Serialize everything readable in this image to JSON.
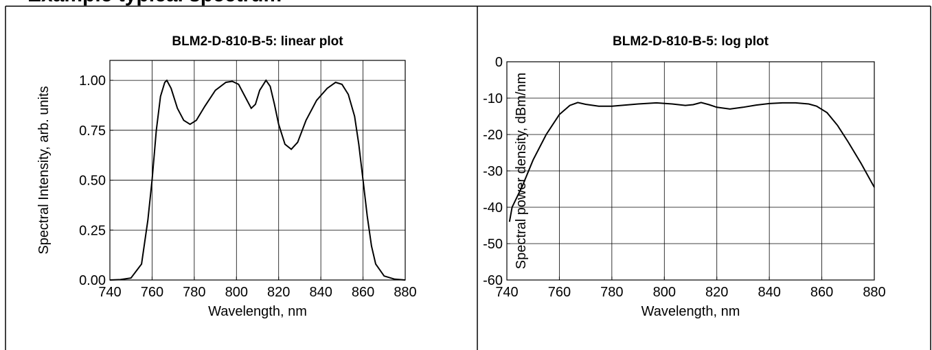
{
  "header": {
    "title": "Example typical spectrum"
  },
  "chart_data": [
    {
      "type": "line",
      "title": "BLM2-D-810-B-5: linear plot",
      "x_label": "Wavelength, nm",
      "y_label": "Spectral Intensity, arb. units",
      "xlim": [
        740,
        880
      ],
      "xticks": [
        740,
        760,
        780,
        800,
        820,
        840,
        860,
        880
      ],
      "ylim": [
        0,
        1.1
      ],
      "yticks": [
        {
          "value": 0,
          "label": "0.00"
        },
        {
          "value": 0.25,
          "label": "0.25"
        },
        {
          "value": 0.5,
          "label": "0.50"
        },
        {
          "value": 0.75,
          "label": "0.75"
        },
        {
          "value": 1,
          "label": "1.00"
        }
      ],
      "grid": true,
      "series": [
        {
          "color": "#000000",
          "x": [
            740,
            745,
            750,
            755,
            758,
            760,
            762,
            764,
            766,
            767,
            769,
            772,
            775,
            778,
            781,
            785,
            790,
            795,
            798,
            801,
            804,
            807,
            809,
            811,
            814,
            816,
            818,
            820,
            823,
            826,
            829,
            833,
            838,
            843,
            847,
            850,
            853,
            856,
            858,
            860,
            862,
            864,
            866,
            870,
            875,
            880
          ],
          "values": [
            0,
            0.002,
            0.01,
            0.08,
            0.3,
            0.5,
            0.75,
            0.92,
            0.99,
            1.0,
            0.96,
            0.86,
            0.8,
            0.78,
            0.8,
            0.87,
            0.95,
            0.99,
            0.995,
            0.98,
            0.92,
            0.86,
            0.88,
            0.95,
            1.0,
            0.97,
            0.88,
            0.78,
            0.68,
            0.655,
            0.69,
            0.8,
            0.9,
            0.96,
            0.99,
            0.98,
            0.93,
            0.82,
            0.68,
            0.5,
            0.32,
            0.17,
            0.08,
            0.02,
            0.004,
            0
          ]
        }
      ]
    },
    {
      "type": "line",
      "title": "BLM2-D-810-B-5: log plot",
      "x_label": "Wavelength, nm",
      "y_label": "Spectral power density, dBm/nm",
      "xlim": [
        740,
        880
      ],
      "xticks": [
        740,
        760,
        780,
        800,
        820,
        840,
        860,
        880
      ],
      "ylim": [
        -60,
        0
      ],
      "yticks": [
        -60,
        -50,
        -40,
        -30,
        -20,
        -10,
        0
      ],
      "grid": true,
      "series": [
        {
          "color": "#000000",
          "x": [
            741,
            742,
            744,
            746,
            750,
            755,
            760,
            764,
            767,
            770,
            775,
            780,
            785,
            790,
            797,
            803,
            808,
            811,
            814,
            817,
            820,
            825,
            830,
            835,
            840,
            845,
            850,
            855,
            858,
            862,
            866,
            870,
            875,
            880
          ],
          "values": [
            -44,
            -40,
            -37,
            -34,
            -27,
            -20,
            -14.5,
            -12,
            -11.2,
            -11.7,
            -12.2,
            -12.2,
            -11.9,
            -11.6,
            -11.3,
            -11.6,
            -12,
            -11.8,
            -11.2,
            -11.8,
            -12.5,
            -13,
            -12.5,
            -11.9,
            -11.5,
            -11.3,
            -11.3,
            -11.6,
            -12.2,
            -14,
            -17.5,
            -22,
            -28,
            -34.5
          ]
        }
      ]
    }
  ]
}
